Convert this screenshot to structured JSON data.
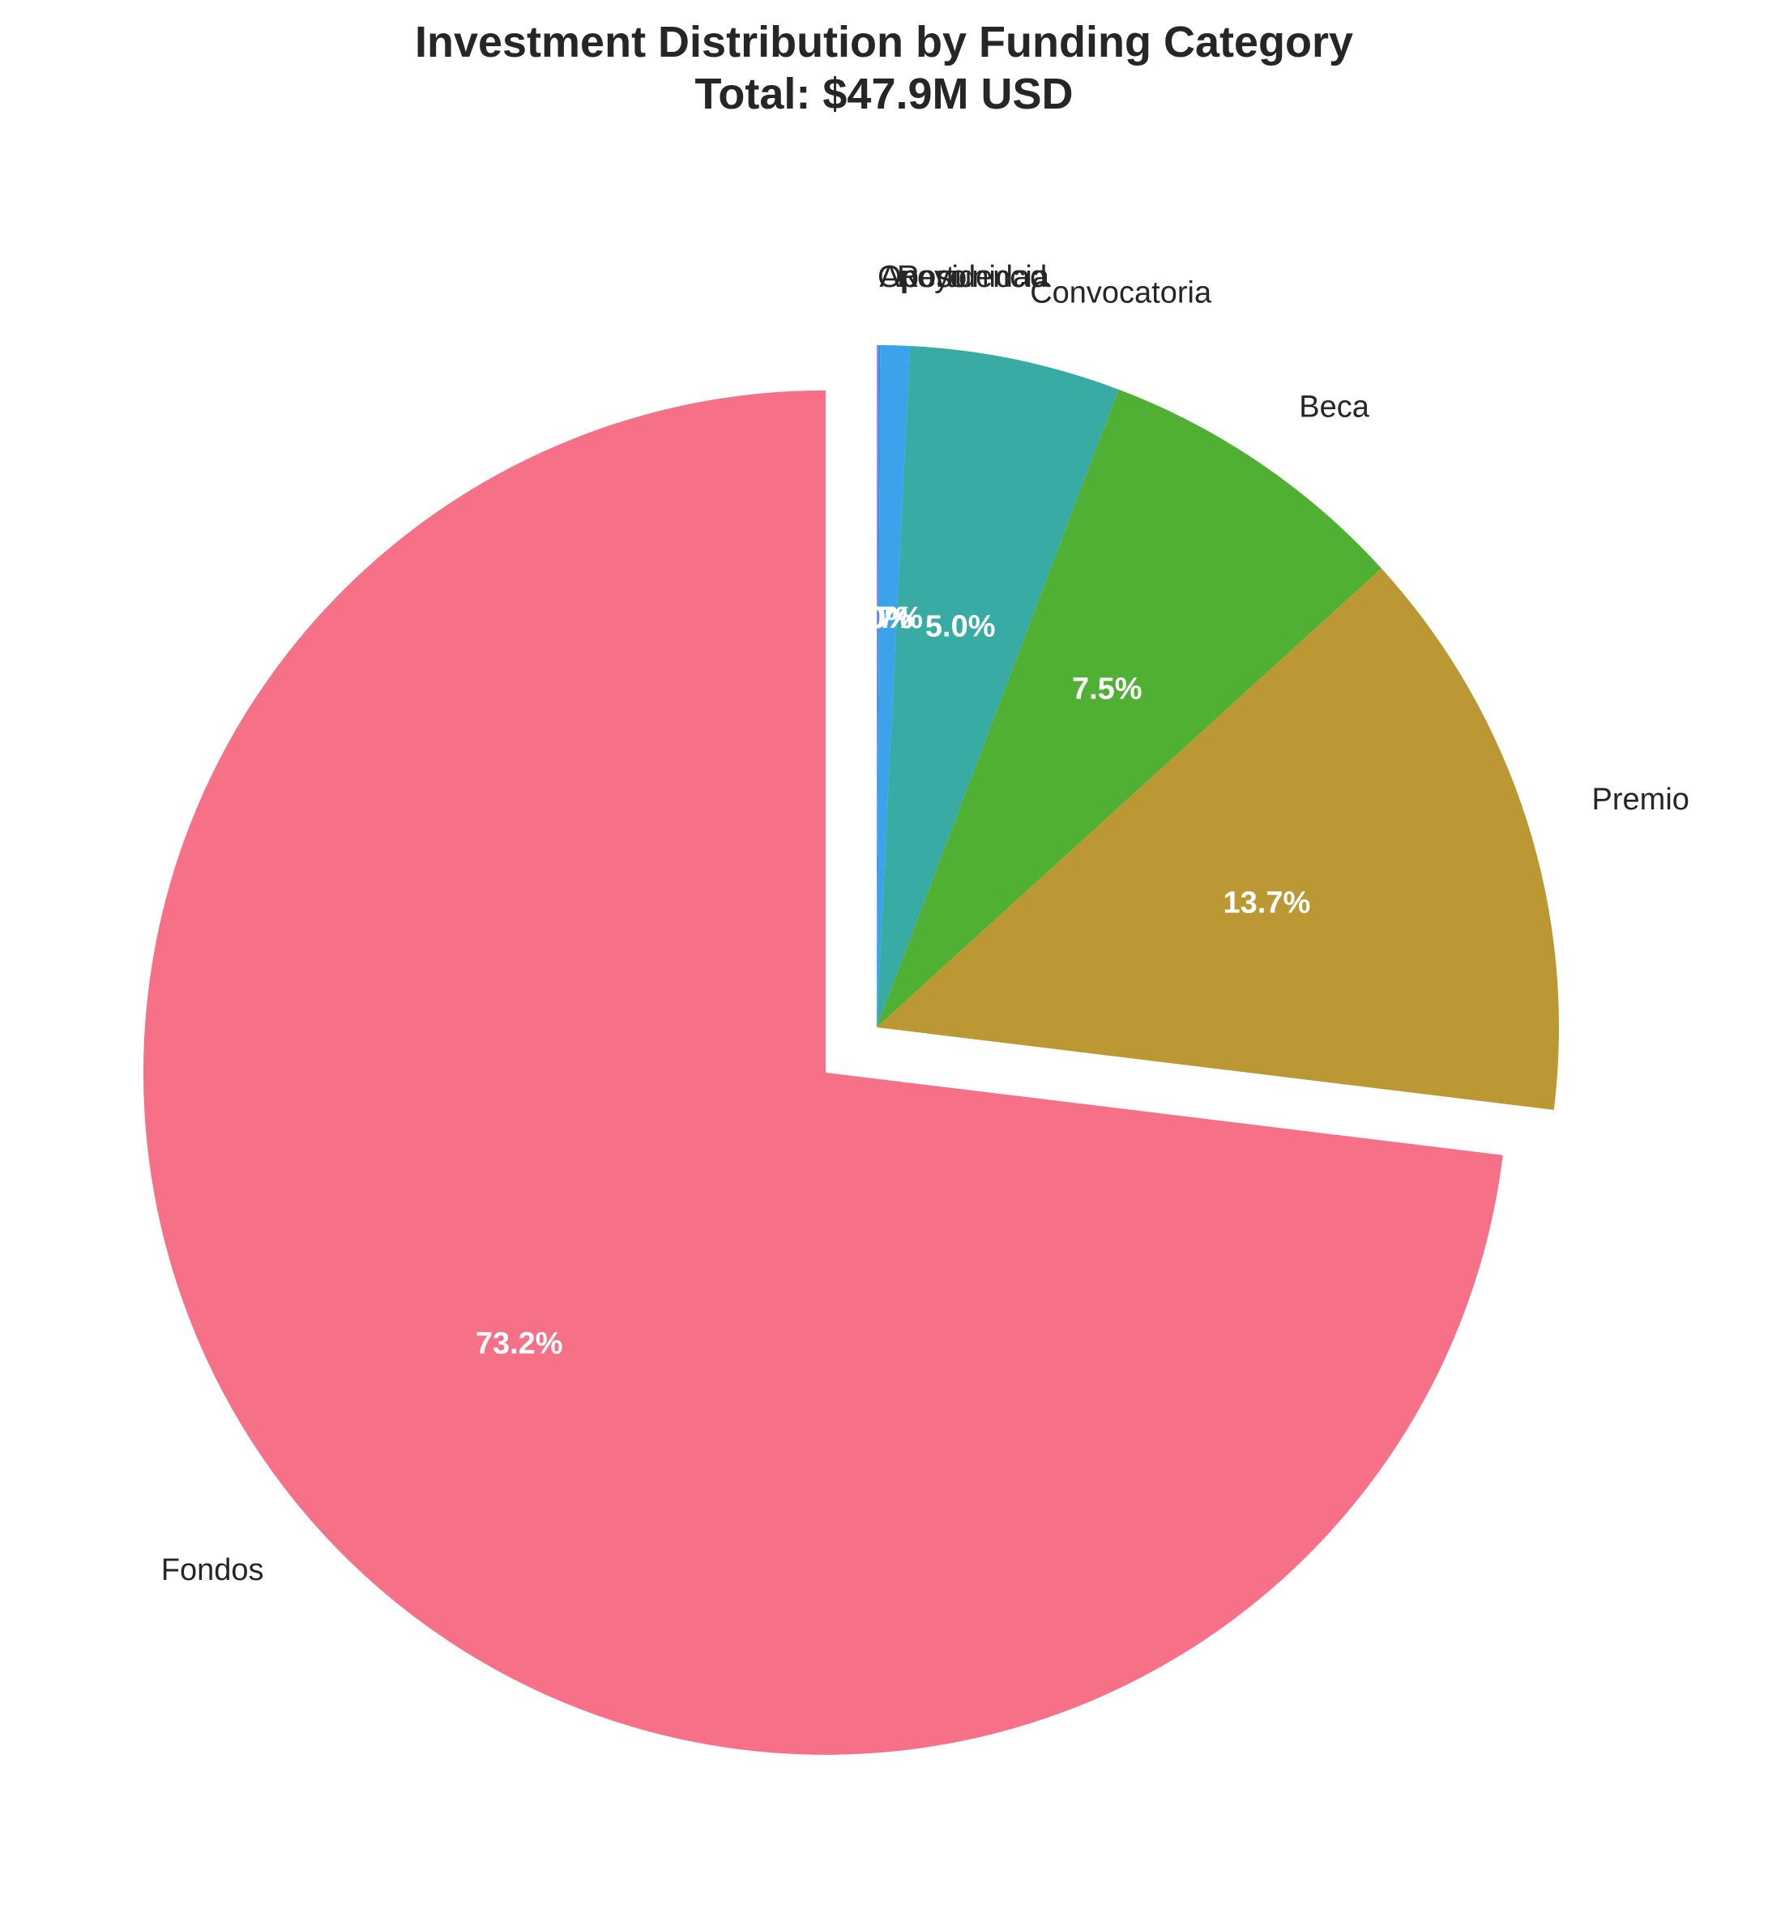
{
  "chart_data": {
    "type": "pie",
    "title": "Investment Distribution by Funding Category",
    "subtitle": "Total: $47.9M USD",
    "start_angle_deg": 90,
    "direction": "clockwise",
    "slices": [
      {
        "label": "Oportunidad",
        "value": 0.04,
        "pct_label": "0.0%",
        "color": "#9b85f0",
        "explode": 0
      },
      {
        "label": "Apoyo",
        "value": 0.04,
        "pct_label": "0.0%",
        "color": "#2f8fd8",
        "explode": 0
      },
      {
        "label": "Residencia",
        "value": 0.7,
        "pct_label": "0.7%",
        "color": "#3ba3ec",
        "explode": 0
      },
      {
        "label": "Convocatoria",
        "value": 5.0,
        "pct_label": "5.0%",
        "color": "#38aba5",
        "explode": 0
      },
      {
        "label": "Beca",
        "value": 7.5,
        "pct_label": "7.5%",
        "color": "#50b033",
        "explode": 0
      },
      {
        "label": "Premio",
        "value": 13.7,
        "pct_label": "13.7%",
        "color": "#bb9833",
        "explode": 0
      },
      {
        "label": "Fondos",
        "value": 73.2,
        "pct_label": "73.2%",
        "color": "#f67088",
        "explode": 0.1
      }
    ]
  }
}
